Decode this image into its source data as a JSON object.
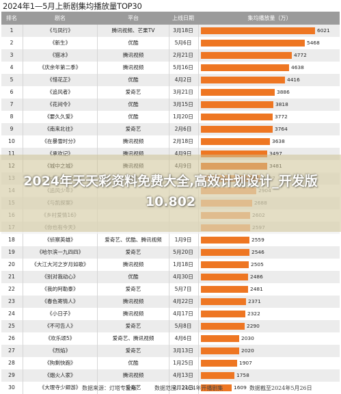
{
  "page": {
    "title": "2024年1—5月上新剧集均播放量TOP30"
  },
  "header": {
    "rank": "排名",
    "name": "剧名",
    "platform": "平台",
    "date": "上线日期",
    "views": "集均播放量（万）"
  },
  "overlay": {
    "title": "2024年天天彩资料免费大全,高效计划设计_开发版10.802"
  },
  "footer": {
    "source": "数据来源：灯塔专业版",
    "range": "数据范围：2024年开播剧集",
    "cutoff": "数据截至2024年5月26日"
  },
  "chart_data": {
    "type": "table",
    "title": "2024年1—5月上新剧集均播放量TOP30",
    "columns": [
      "排名",
      "剧名",
      "平台",
      "上线日期",
      "集均播放量（万）"
    ],
    "rows": [
      {
        "rank": "1",
        "name": "《与凤行》",
        "platform": "腾讯视频、芒果TV",
        "date": "3月18日",
        "value": 6021
      },
      {
        "rank": "2",
        "name": "《新生》",
        "platform": "优酷",
        "date": "5月6日",
        "value": 5468
      },
      {
        "rank": "3",
        "name": "《猎冰》",
        "platform": "腾讯视频",
        "date": "2月21日",
        "value": 4772
      },
      {
        "rank": "4",
        "name": "《庆余年第二季》",
        "platform": "腾讯视频",
        "date": "5月16日",
        "value": 4638
      },
      {
        "rank": "5",
        "name": "《惜花芷》",
        "platform": "优酷",
        "date": "4月2日",
        "value": 4416
      },
      {
        "rank": "6",
        "name": "《追风者》",
        "platform": "爱奇艺",
        "date": "3月21日",
        "value": 3886
      },
      {
        "rank": "7",
        "name": "《花间令》",
        "platform": "优酷",
        "date": "3月15日",
        "value": 3818
      },
      {
        "rank": "8",
        "name": "《要久久爱》",
        "platform": "优酷",
        "date": "1月20日",
        "value": 3772
      },
      {
        "rank": "9",
        "name": "《南来北往》",
        "platform": "爱奇艺",
        "date": "2月6日",
        "value": 3764
      },
      {
        "rank": "10",
        "name": "《在暴雪时分》",
        "platform": "腾讯视频",
        "date": "2月18日",
        "value": 3638
      },
      {
        "rank": "11",
        "name": "《承欢记》",
        "platform": "腾讯视频",
        "date": "4月9日",
        "value": 3497
      },
      {
        "rank": "12",
        "name": "《城中之城》",
        "platform": "腾讯视频",
        "date": "4月9日",
        "value": 3481
      },
      {
        "rank": "13",
        "name": "《大唐公公案》",
        "platform": "优酷",
        "date": "",
        "value": 3127
      },
      {
        "rank": "14",
        "name": "《追风少年》",
        "platform": "",
        "date": "",
        "value": 2904
      },
      {
        "rank": "15",
        "name": "《与凯探案》",
        "platform": "",
        "date": "",
        "value": 2688
      },
      {
        "rank": "16",
        "name": "《乡村爱情16》",
        "platform": "",
        "date": "",
        "value": 2602
      },
      {
        "rank": "17",
        "name": "《你也有今天》",
        "platform": "",
        "date": "",
        "value": 2597
      },
      {
        "rank": "18",
        "name": "《侦察英雄》",
        "platform": "爱奇艺、优酷、腾讯视频",
        "date": "1月9日",
        "value": 2559
      },
      {
        "rank": "19",
        "name": "《哈尔滨一九四四》",
        "platform": "爱奇艺",
        "date": "5月20日",
        "value": 2546
      },
      {
        "rank": "20",
        "name": "《大江大河之岁月如歌》",
        "platform": "腾讯视频",
        "date": "1月18日",
        "value": 2505
      },
      {
        "rank": "21",
        "name": "《别对我动心》",
        "platform": "优酷",
        "date": "4月30日",
        "value": 2486
      },
      {
        "rank": "22",
        "name": "《我的阿勒泰》",
        "platform": "爱奇艺",
        "date": "5月7日",
        "value": 2481
      },
      {
        "rank": "23",
        "name": "《春色寄情人》",
        "platform": "腾讯视频",
        "date": "4月22日",
        "value": 2371
      },
      {
        "rank": "24",
        "name": "《小日子》",
        "platform": "腾讯视频",
        "date": "4月17日",
        "value": 2322
      },
      {
        "rank": "25",
        "name": "《不可告人》",
        "platform": "爱奇艺",
        "date": "5月8日",
        "value": 2290
      },
      {
        "rank": "26",
        "name": "《欢乐颂5》",
        "platform": "爱奇艺、腾讯视频",
        "date": "4月6日",
        "value": 2030
      },
      {
        "rank": "27",
        "name": "《烈焰》",
        "platform": "爱奇艺",
        "date": "3月13日",
        "value": 2020
      },
      {
        "rank": "28",
        "name": "《狗剩快跑》",
        "platform": "优酷",
        "date": "1月25日",
        "value": 1907
      },
      {
        "rank": "29",
        "name": "《烟火人家》",
        "platform": "腾讯视频",
        "date": "4月13日",
        "value": 1758
      },
      {
        "rank": "30",
        "name": "《大理寺少卿游》",
        "platform": "爱奇艺",
        "date": "2月21日",
        "value": 1609
      }
    ],
    "bar_color": "#ee7622",
    "xlim": [
      0,
      6300
    ]
  }
}
